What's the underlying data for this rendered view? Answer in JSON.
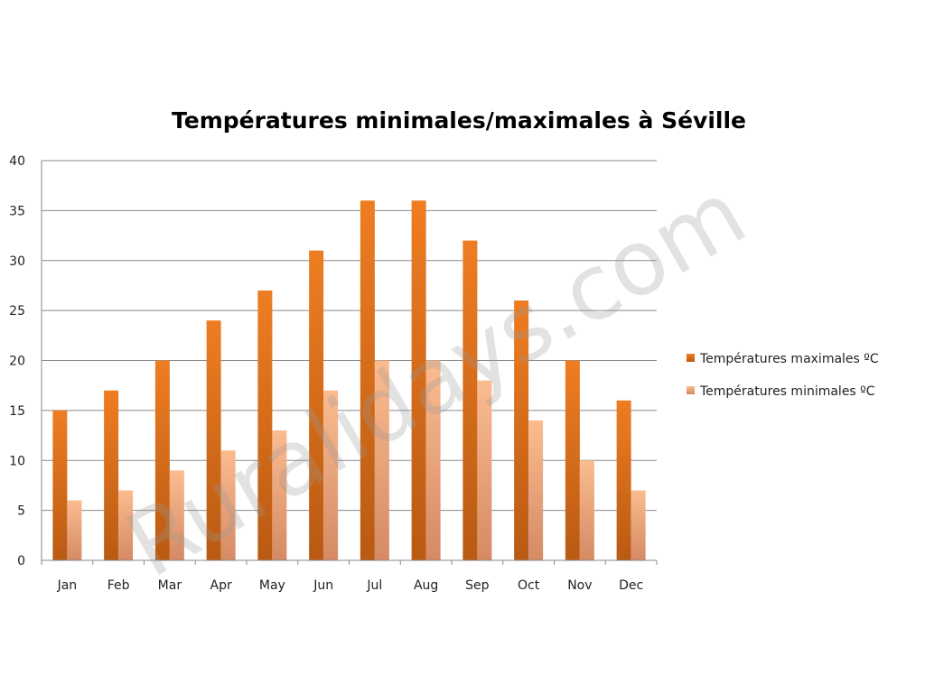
{
  "chart_data": {
    "type": "bar",
    "title": "Températures minimales/maximales à Séville",
    "xlabel": "",
    "ylabel": "",
    "categories": [
      "Jan",
      "Feb",
      "Mar",
      "Apr",
      "May",
      "Jun",
      "Jul",
      "Aug",
      "Sep",
      "Oct",
      "Nov",
      "Dec"
    ],
    "series": [
      {
        "name": "Températures maximales ºC",
        "color": "#e0731c",
        "values": [
          15,
          17,
          20,
          24,
          27,
          31,
          36,
          36,
          32,
          26,
          20,
          16
        ]
      },
      {
        "name": "Températures minimales ºC",
        "color": "#f5b287",
        "values": [
          6,
          7,
          9,
          11,
          13,
          17,
          20,
          20,
          18,
          14,
          10,
          7
        ]
      }
    ],
    "ylim": [
      0,
      40
    ],
    "yticks": [
      0,
      5,
      10,
      15,
      20,
      25,
      30,
      35,
      40
    ],
    "grid": true,
    "legend_position": "right"
  },
  "watermark": "Ruralidays.com"
}
